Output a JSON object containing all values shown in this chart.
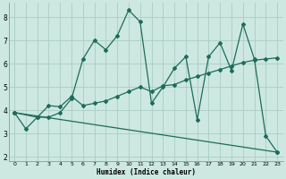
{
  "xlabel": "Humidex (Indice chaleur)",
  "background_color": "#cce8e0",
  "grid_color": "#aaccc4",
  "line_color": "#1e6b5a",
  "xlim": [
    -0.5,
    23.5
  ],
  "ylim": [
    1.8,
    8.6
  ],
  "xticks": [
    0,
    1,
    2,
    3,
    4,
    5,
    6,
    7,
    8,
    9,
    10,
    11,
    12,
    13,
    14,
    15,
    16,
    17,
    18,
    19,
    20,
    21,
    22,
    23
  ],
  "yticks": [
    2,
    3,
    4,
    5,
    6,
    7,
    8
  ],
  "line1_x": [
    0,
    1,
    2,
    3,
    4,
    5,
    6,
    7,
    8,
    9,
    10,
    11,
    12,
    13,
    14,
    15,
    16,
    17,
    18,
    19,
    20,
    21,
    22,
    23
  ],
  "line1_y": [
    3.9,
    3.2,
    3.7,
    3.7,
    3.9,
    4.5,
    6.2,
    7.0,
    6.6,
    7.2,
    8.3,
    7.8,
    4.3,
    5.0,
    5.8,
    6.3,
    3.6,
    6.3,
    6.9,
    5.7,
    7.7,
    6.2,
    2.9,
    2.2
  ],
  "line2_x": [
    0,
    2,
    3,
    4,
    5,
    6,
    7,
    8,
    9,
    10,
    11,
    12,
    13,
    14,
    15,
    16,
    17,
    18,
    19,
    20,
    21,
    22,
    23
  ],
  "line2_y": [
    3.9,
    3.7,
    4.2,
    4.15,
    4.6,
    4.2,
    4.3,
    4.4,
    4.6,
    4.8,
    5.0,
    4.8,
    5.05,
    5.1,
    5.3,
    5.45,
    5.6,
    5.75,
    5.9,
    6.05,
    6.15,
    6.2,
    6.25
  ],
  "line3_x": [
    0,
    23
  ],
  "line3_y": [
    3.9,
    2.2
  ]
}
